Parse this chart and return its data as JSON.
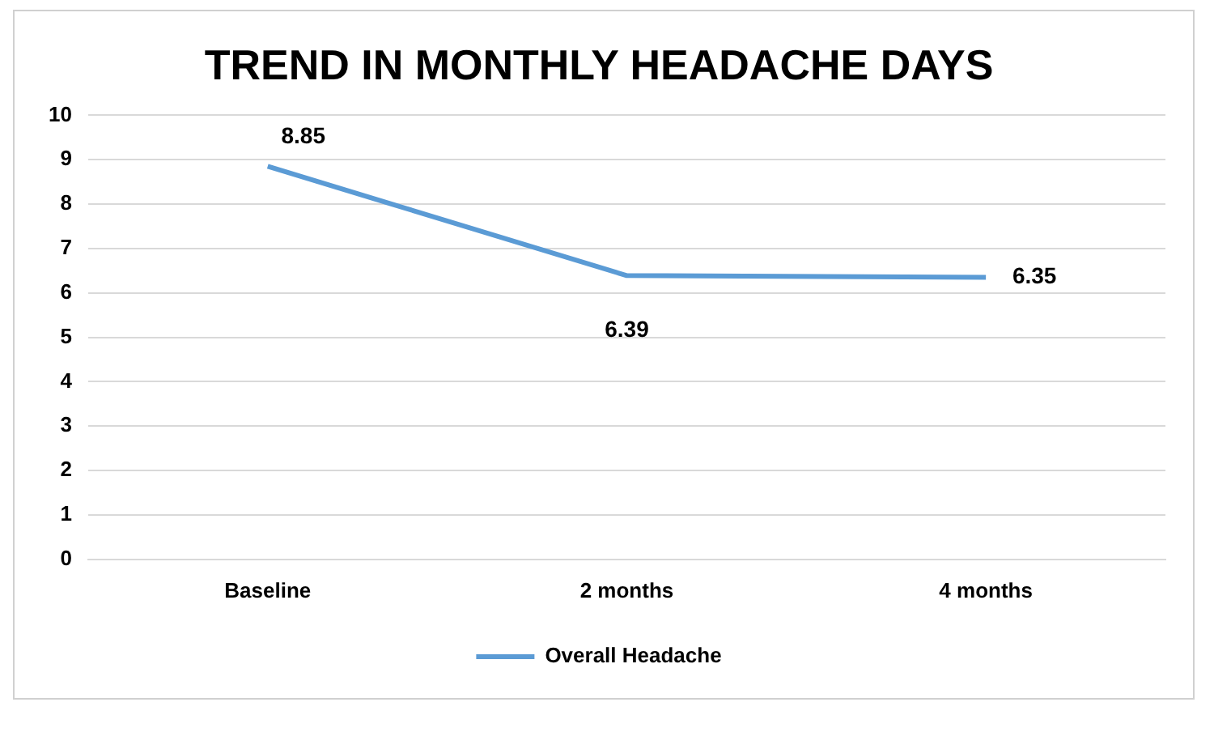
{
  "chart_data": {
    "type": "line",
    "title": "TREND IN MONTHLY HEADACHE DAYS",
    "categories": [
      "Baseline",
      "2 months",
      "4 months"
    ],
    "series": [
      {
        "name": "Overall Headache",
        "color": "#5b9bd5",
        "values": [
          8.85,
          6.39,
          6.35
        ]
      }
    ],
    "ylim": [
      0,
      10
    ],
    "yticks": [
      0,
      1,
      2,
      3,
      4,
      5,
      6,
      7,
      8,
      9,
      10
    ],
    "grid": "y",
    "legend": "bottom",
    "marker": "none",
    "line_style": "solid",
    "data_labels": true
  }
}
